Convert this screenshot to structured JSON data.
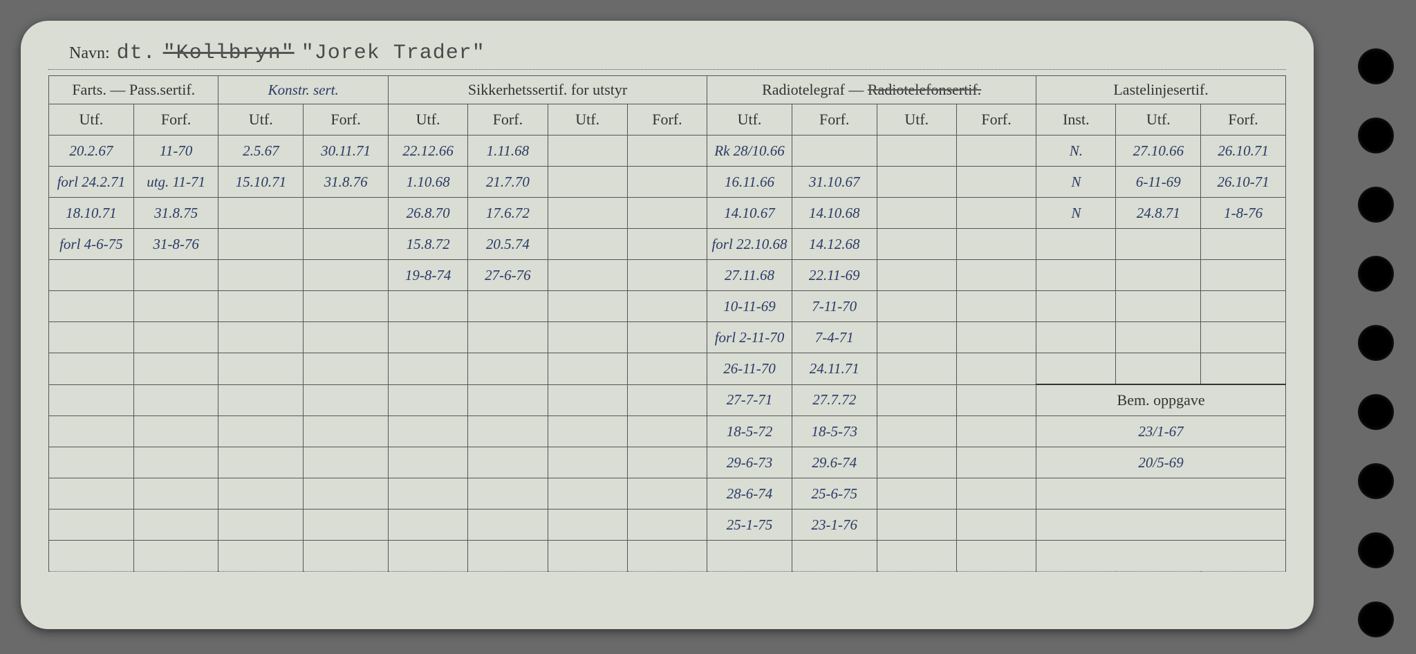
{
  "title": {
    "label": "Navn:",
    "typed_prefix": "dt.",
    "typed_struck": "\"Kollbryn\"",
    "typed_after": "\"Jorek Trader\""
  },
  "groups": {
    "g1": "Farts. — Pass.sertif.",
    "g1_extra": "Konstr. sert.",
    "g2": "Sikkerhetssertif. for utstyr",
    "g3_a": "Radiotelegraf —",
    "g3_struck": "Radiotelefonsertif.",
    "g4": "Lastelinjesertif.",
    "bem": "Bem. oppgave"
  },
  "sub": {
    "utf": "Utf.",
    "forf": "Forf.",
    "inst": "Inst."
  },
  "rows": [
    {
      "c": [
        "20.2.67",
        "11-70",
        "2.5.67",
        "30.11.71",
        "22.12.66",
        "1.11.68",
        "",
        "",
        "Rk 28/10.66",
        "",
        "",
        "",
        "N.",
        "27.10.66",
        "26.10.71"
      ]
    },
    {
      "c": [
        "forl 24.2.71",
        "utg. 11-71",
        "15.10.71",
        "31.8.76",
        "1.10.68",
        "21.7.70",
        "",
        "",
        "16.11.66",
        "31.10.67",
        "",
        "",
        "N",
        "6-11-69",
        "26.10-71"
      ]
    },
    {
      "c": [
        "18.10.71",
        "31.8.75",
        "",
        "",
        "26.8.70",
        "17.6.72",
        "",
        "",
        "14.10.67",
        "14.10.68",
        "",
        "",
        "N",
        "24.8.71",
        "1-8-76"
      ]
    },
    {
      "c": [
        "forl 4-6-75",
        "31-8-76",
        "",
        "",
        "15.8.72",
        "20.5.74",
        "",
        "",
        "forl 22.10.68",
        "14.12.68",
        "",
        "",
        "",
        "",
        ""
      ]
    },
    {
      "c": [
        "",
        "",
        "",
        "",
        "19-8-74",
        "27-6-76",
        "",
        "",
        "27.11.68",
        "22.11-69",
        "",
        "",
        "",
        "",
        ""
      ]
    },
    {
      "c": [
        "",
        "",
        "",
        "",
        "",
        "",
        "",
        "",
        "10-11-69",
        "7-11-70",
        "",
        "",
        "",
        "",
        ""
      ]
    },
    {
      "c": [
        "",
        "",
        "",
        "",
        "",
        "",
        "",
        "",
        "forl 2-11-70",
        "7-4-71",
        "",
        "",
        "",
        "",
        ""
      ]
    },
    {
      "c": [
        "",
        "",
        "",
        "",
        "",
        "",
        "",
        "",
        "26-11-70",
        "24.11.71",
        "",
        "",
        "",
        "",
        ""
      ]
    },
    {
      "c": [
        "",
        "",
        "",
        "",
        "",
        "",
        "",
        "",
        "27-7-71",
        "27.7.72",
        "",
        "",
        "",
        "",
        ""
      ]
    },
    {
      "c": [
        "",
        "",
        "",
        "",
        "",
        "",
        "",
        "",
        "18-5-72",
        "18-5-73",
        "",
        "",
        "23/1-67",
        "",
        ""
      ]
    },
    {
      "c": [
        "",
        "",
        "",
        "",
        "",
        "",
        "",
        "",
        "29-6-73",
        "29.6-74",
        "",
        "",
        "20/5-69",
        "",
        ""
      ]
    },
    {
      "c": [
        "",
        "",
        "",
        "",
        "",
        "",
        "",
        "",
        "28-6-74",
        "25-6-75",
        "",
        "",
        "",
        "",
        ""
      ]
    },
    {
      "c": [
        "",
        "",
        "",
        "",
        "",
        "",
        "",
        "",
        "25-1-75",
        "23-1-76",
        "",
        "",
        "",
        "",
        ""
      ]
    },
    {
      "c": [
        "",
        "",
        "",
        "",
        "",
        "",
        "",
        "",
        "",
        "",
        "",
        "",
        "",
        "",
        ""
      ]
    }
  ],
  "colors": {
    "paper": "#d9ddd4",
    "ink_print": "#333333",
    "ink_hand": "#2b3a63",
    "border": "#555555",
    "page_bg": "#6a6a6a"
  }
}
